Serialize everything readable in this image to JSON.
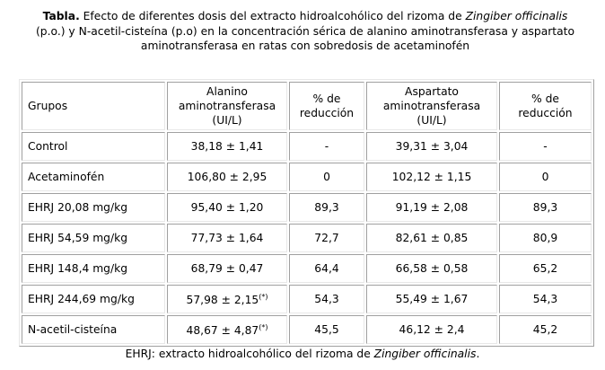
{
  "caption": {
    "label": "Tabla.",
    "text1": " Efecto de diferentes dosis del extracto hidroalcohólico del rizoma de ",
    "species": "Zingiber officinalis",
    "text2": " (p.o.) y N-acetil-cisteína  (p.o) en la concentración sérica de alanino aminotransferasa y aspartato aminotransferasa en ratas con sobredosis de acetaminofén"
  },
  "table": {
    "headers": [
      "Grupos",
      "Alanino aminotransferasa (UI/L)",
      "% de reducción",
      "Aspartato aminotransferasa (UI/L)",
      "% de reducción"
    ],
    "rows": [
      {
        "group": "Control",
        "alt": "38,18 ± 1,41",
        "alt_mark": "",
        "alt_red": "-",
        "ast": "39,31 ± 3,04",
        "ast_red": "-"
      },
      {
        "group": "Acetaminofén",
        "alt": "106,80 ± 2,95",
        "alt_mark": "",
        "alt_red": "0",
        "ast": "102,12 ± 1,15",
        "ast_red": "0"
      },
      {
        "group": "EHRJ 20,08 mg/kg",
        "alt": "95,40 ± 1,20",
        "alt_mark": "",
        "alt_red": "89,3",
        "ast": "91,19 ± 2,08",
        "ast_red": "89,3"
      },
      {
        "group": "EHRJ 54,59 mg/kg",
        "alt": "77,73 ± 1,64",
        "alt_mark": "",
        "alt_red": "72,7",
        "ast": "82,61 ± 0,85",
        "ast_red": "80,9"
      },
      {
        "group": "EHRJ 148,4 mg/kg",
        "alt": "68,79 ± 0,47",
        "alt_mark": "",
        "alt_red": "64,4",
        "ast": "66,58 ± 0,58",
        "ast_red": "65,2"
      },
      {
        "group": "EHRJ 244,69 mg/kg",
        "alt": "57,98 ± 2,15",
        "alt_mark": "(*)",
        "alt_red": "54,3",
        "ast": "55,49 ± 1,67",
        "ast_red": "54,3"
      },
      {
        "group": "N-acetil-cisteína",
        "alt": "48,67 ± 4,87",
        "alt_mark": "(*)",
        "alt_red": "45,5",
        "ast": "46,12 ± 2,4",
        "ast_red": "45,2"
      }
    ]
  },
  "footnote": {
    "text": "EHRJ: extracto hidroalcohólico del rizoma de ",
    "species": "Zingiber officinalis",
    "end": "."
  }
}
